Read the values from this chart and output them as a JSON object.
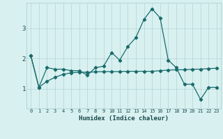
{
  "xlabel": "Humidex (Indice chaleur)",
  "x_values": [
    0,
    1,
    2,
    3,
    4,
    5,
    6,
    7,
    8,
    9,
    10,
    11,
    12,
    13,
    14,
    15,
    16,
    17,
    18,
    19,
    20,
    21,
    22,
    23
  ],
  "line1_y": [
    2.1,
    1.05,
    1.7,
    1.65,
    1.65,
    1.6,
    1.6,
    1.45,
    1.7,
    1.75,
    2.2,
    1.95,
    2.4,
    2.7,
    3.3,
    3.65,
    3.35,
    1.95,
    1.7,
    1.15,
    1.15,
    0.65,
    1.05,
    1.05
  ],
  "line2_y": [
    2.1,
    1.05,
    1.25,
    1.38,
    1.48,
    1.53,
    1.55,
    1.55,
    1.56,
    1.57,
    1.57,
    1.57,
    1.58,
    1.58,
    1.58,
    1.58,
    1.6,
    1.62,
    1.63,
    1.63,
    1.65,
    1.65,
    1.67,
    1.68
  ],
  "line_color": "#1a6b6b",
  "bg_color": "#d8f0f0",
  "grid_color": "#b8d8d8",
  "ylim": [
    0.35,
    3.85
  ],
  "yticks": [
    1,
    2,
    3
  ],
  "xlim": [
    -0.5,
    23.5
  ]
}
